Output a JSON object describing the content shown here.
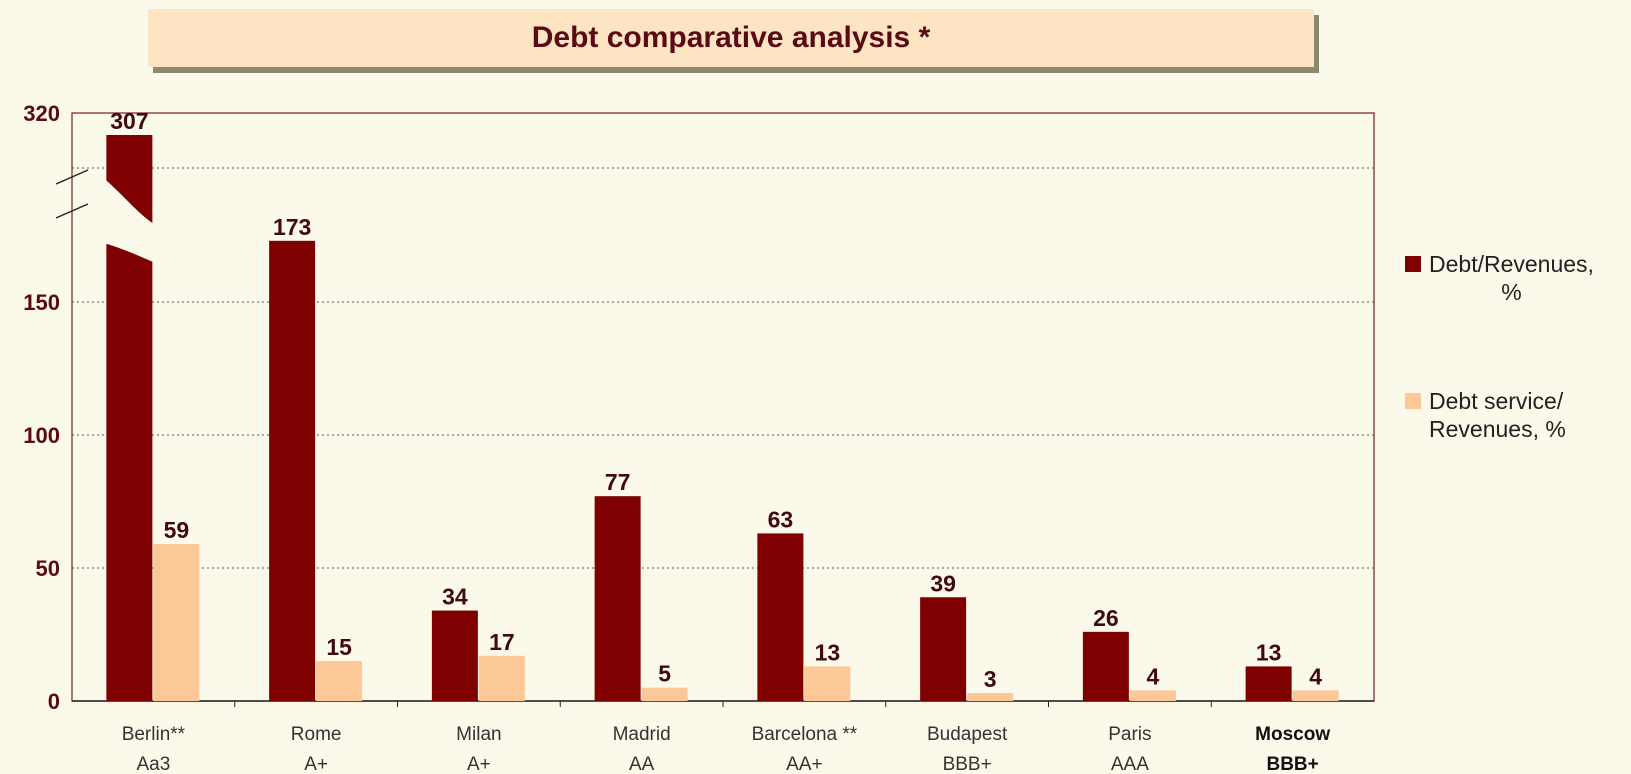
{
  "title": "Debt comparative analysis *",
  "colors": {
    "series1": "#7f0000",
    "series2": "#fdc898",
    "background": "#fbf9ea",
    "title_box": "#fde5c3"
  },
  "legend": [
    {
      "label_line1": "Debt/Revenues,",
      "label_line2": "%"
    },
    {
      "label_line1": "Debt service/",
      "label_line2": "Revenues, %"
    }
  ],
  "chart_data": {
    "type": "bar",
    "title": "Debt comparative analysis *",
    "categories": [
      {
        "city": "Berlin**",
        "rating": "Aa3",
        "emphasis": false
      },
      {
        "city": "Rome",
        "rating": "A+",
        "emphasis": false
      },
      {
        "city": "Milan",
        "rating": "A+",
        "emphasis": false
      },
      {
        "city": "Madrid",
        "rating": "AA",
        "emphasis": false
      },
      {
        "city": "Barcelona **",
        "rating": "AA+",
        "emphasis": false
      },
      {
        "city": "Budapest",
        "rating": "BBB+",
        "emphasis": false
      },
      {
        "city": "Paris",
        "rating": "AAA",
        "emphasis": false
      },
      {
        "city": "Moscow",
        "rating": "BBB+",
        "emphasis": true
      }
    ],
    "series": [
      {
        "name": "Debt/Revenues, %",
        "values": [
          307,
          173,
          34,
          77,
          63,
          39,
          26,
          13
        ]
      },
      {
        "name": "Debt service/ Revenues, %",
        "values": [
          59,
          15,
          17,
          5,
          13,
          3,
          4,
          4
        ]
      }
    ],
    "y_ticks": [
      "0",
      "50",
      "100",
      "150",
      "320"
    ],
    "axis_break": true,
    "grid": "horizontal dotted",
    "legend_position": "right"
  }
}
